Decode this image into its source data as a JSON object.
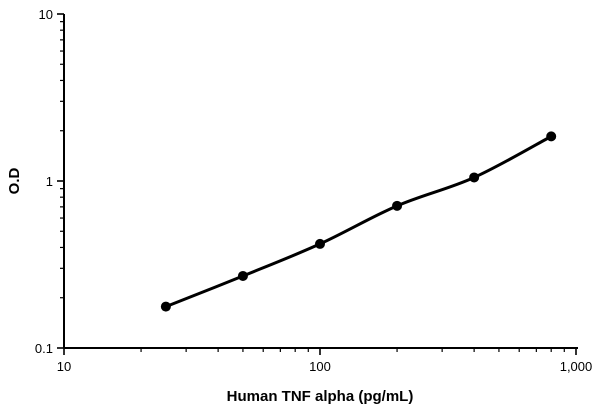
{
  "chart_data": {
    "type": "line",
    "title": "",
    "xlabel": "Human TNF alpha (pg/mL)",
    "ylabel": "O.D",
    "x_scale": "log",
    "y_scale": "log",
    "xlim": [
      10,
      1000
    ],
    "ylim": [
      0.1,
      10
    ],
    "x_ticks": [
      10,
      100,
      1000
    ],
    "x_tick_labels": [
      "10",
      "100",
      "1,000"
    ],
    "y_ticks": [
      0.1,
      1,
      10
    ],
    "y_tick_labels": [
      "0.1",
      "1",
      "10"
    ],
    "grid": false,
    "legend": "none",
    "series": [
      {
        "x": [
          25,
          50,
          100,
          200,
          400,
          800
        ],
        "y": [
          0.177,
          0.27,
          0.42,
          0.71,
          1.05,
          1.85
        ],
        "color": "#000000",
        "marker": "circle"
      }
    ]
  }
}
